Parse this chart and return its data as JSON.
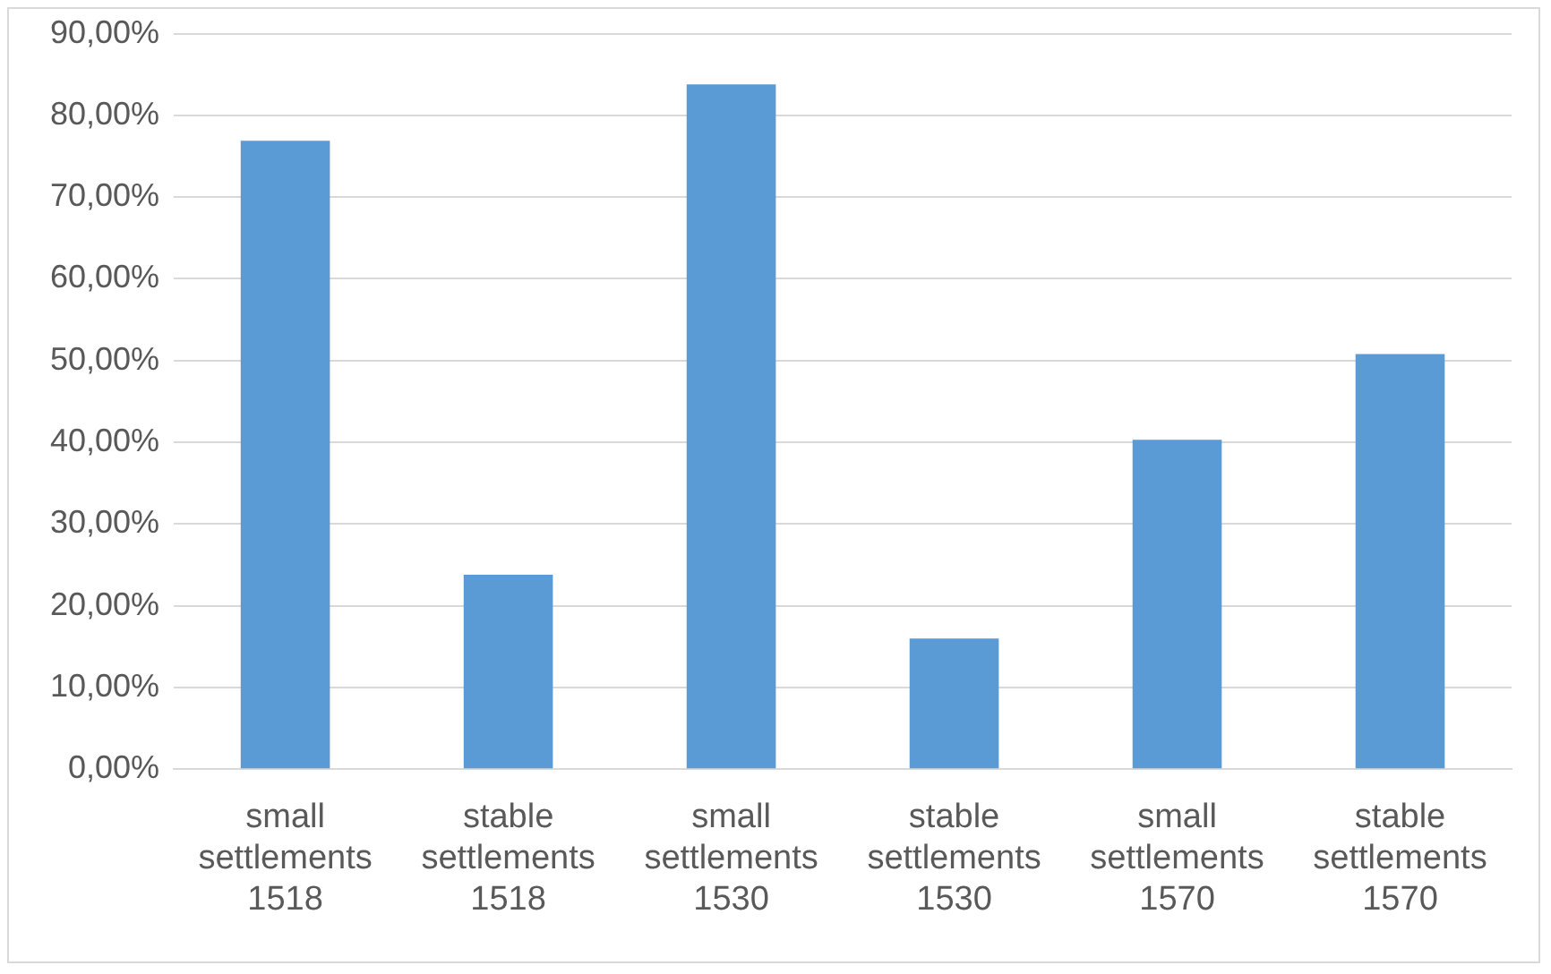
{
  "chart_data": {
    "type": "bar",
    "categories": [
      "small settlements 1518",
      "stable settlements 1518",
      "small settlements 1530",
      "stable settlements 1530",
      "small settlements 1570",
      "stable settlements 1570"
    ],
    "values": [
      76.9,
      23.8,
      83.8,
      16.0,
      40.3,
      50.8
    ],
    "color": "#5b9bd5",
    "ylim": [
      0,
      90
    ],
    "yticks": [
      {
        "value": 0,
        "label": "0,00%"
      },
      {
        "value": 10,
        "label": "10,00%"
      },
      {
        "value": 20,
        "label": "20,00%"
      },
      {
        "value": 30,
        "label": "30,00%"
      },
      {
        "value": 40,
        "label": "40,00%"
      },
      {
        "value": 50,
        "label": "50,00%"
      },
      {
        "value": 60,
        "label": "60,00%"
      },
      {
        "value": 70,
        "label": "70,00%"
      },
      {
        "value": 80,
        "label": "80,00%"
      },
      {
        "value": 90,
        "label": "90,00%"
      }
    ],
    "grid": "y",
    "legend": false
  }
}
